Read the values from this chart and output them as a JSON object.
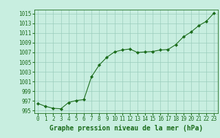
{
  "hours": [
    0,
    1,
    2,
    3,
    4,
    5,
    6,
    7,
    8,
    9,
    10,
    11,
    12,
    13,
    14,
    15,
    16,
    17,
    18,
    19,
    20,
    21,
    22,
    23
  ],
  "pressure": [
    996.5,
    995.9,
    995.5,
    995.4,
    996.7,
    997.1,
    997.3,
    1002.0,
    1004.4,
    1006.0,
    1007.1,
    1007.5,
    1007.7,
    1007.0,
    1007.1,
    1007.2,
    1007.5,
    1007.6,
    1008.6,
    1010.2,
    1011.2,
    1012.5,
    1013.4,
    1015.1
  ],
  "ylim_min": 994.5,
  "ylim_max": 1015.8,
  "yticks": [
    995,
    997,
    999,
    1001,
    1003,
    1005,
    1007,
    1009,
    1011,
    1013,
    1015
  ],
  "xticks": [
    0,
    1,
    2,
    3,
    4,
    5,
    6,
    7,
    8,
    9,
    10,
    11,
    12,
    13,
    14,
    15,
    16,
    17,
    18,
    19,
    20,
    21,
    22,
    23
  ],
  "line_color": "#1a6b1a",
  "marker_color": "#1a6b1a",
  "bg_color": "#c8eee0",
  "grid_color": "#99ccbb",
  "xlabel": "Graphe pression niveau de la mer (hPa)",
  "xlabel_color": "#1a6b1a",
  "tick_color": "#1a6b1a",
  "label_fontsize": 7.0,
  "tick_fontsize": 5.5
}
